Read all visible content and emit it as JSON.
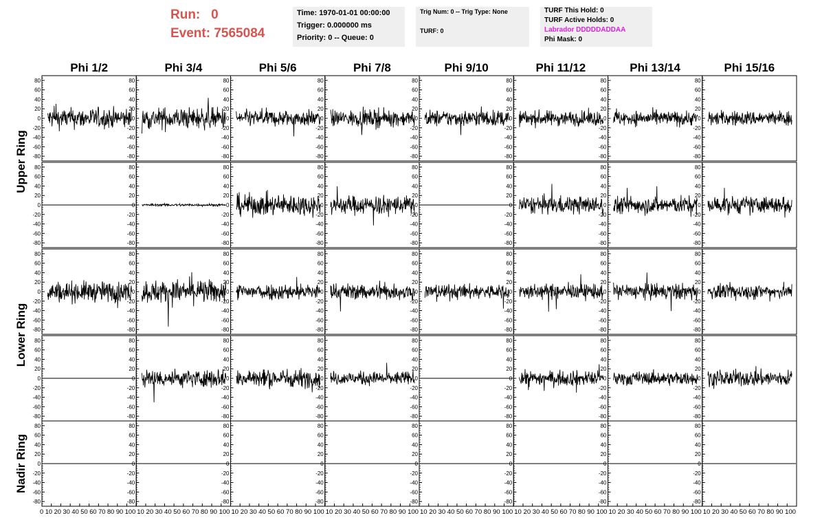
{
  "header": {
    "run_label": "Run:",
    "run_value": "0",
    "event_label": "Event:",
    "event_value": "7565084",
    "run_color": "#d9534f"
  },
  "info_panels": {
    "time_line": "Time: 1970-01-01 00:00:00",
    "trigger_line": "Trigger: 0.000000 ms",
    "priority_line": "Priority: 0 -- Queue: 0",
    "trig_line": "Trig Num: 0 -- Trig Type: None",
    "turf_line": "TURF: 0",
    "turf_hold_line": "TURF This Hold: 0",
    "turf_active_line": "TURF Active Holds: 0",
    "labrador_line": "Labrador DDDDDADDAA",
    "labrador_color": "#e020e0",
    "phimask_line": "Phi Mask: 0"
  },
  "chart_data": {
    "type": "line",
    "columns": [
      "Phi 1/2",
      "Phi 3/4",
      "Phi 5/6",
      "Phi 7/8",
      "Phi 9/10",
      "Phi 11/12",
      "Phi 13/14",
      "Phi 15/16"
    ],
    "ring_labels": [
      {
        "text": "Upper Ring",
        "rows": [
          0,
          1
        ]
      },
      {
        "text": "Lower Ring",
        "rows": [
          2,
          3
        ]
      },
      {
        "text": "Nadir Ring",
        "rows": [
          4
        ]
      }
    ],
    "ylim": [
      -90,
      90
    ],
    "yticks": [
      -80,
      -60,
      -40,
      -20,
      0,
      20,
      40,
      60,
      80
    ],
    "xlim": [
      0,
      100
    ],
    "xtick_first": "0 10 20 30 40 50 60 70 80 90 100",
    "xtick_other": "10 20 30 40 50 60 70 80 90 100",
    "grid": false,
    "line_color": "#000000",
    "panels": [
      [
        {
          "amp": 15,
          "flat": false
        },
        {
          "amp": 16,
          "flat": false
        },
        {
          "amp": 12,
          "flat": false
        },
        {
          "amp": 12,
          "flat": false
        },
        {
          "amp": 12,
          "flat": false
        },
        {
          "amp": 11,
          "flat": false
        },
        {
          "amp": 11,
          "flat": false
        },
        {
          "amp": 11,
          "flat": false
        }
      ],
      [
        {
          "amp": 0,
          "flat": true
        },
        {
          "amp": 2,
          "flat": false
        },
        {
          "amp": 16,
          "flat": false
        },
        {
          "amp": 14,
          "flat": false
        },
        {
          "amp": 0,
          "flat": true
        },
        {
          "amp": 13,
          "flat": false
        },
        {
          "amp": 13,
          "flat": false
        },
        {
          "amp": 13,
          "flat": false
        }
      ],
      [
        {
          "amp": 15,
          "flat": false
        },
        {
          "amp": 17,
          "flat": false
        },
        {
          "amp": 12,
          "flat": false
        },
        {
          "amp": 12,
          "flat": false
        },
        {
          "amp": 11,
          "flat": false
        },
        {
          "amp": 11,
          "flat": false
        },
        {
          "amp": 12,
          "flat": false
        },
        {
          "amp": 11,
          "flat": false
        }
      ],
      [
        {
          "amp": 0,
          "flat": true
        },
        {
          "amp": 13,
          "flat": false
        },
        {
          "amp": 14,
          "flat": false
        },
        {
          "amp": 10,
          "flat": false
        },
        {
          "amp": 0,
          "flat": true
        },
        {
          "amp": 11,
          "flat": false
        },
        {
          "amp": 10,
          "flat": false
        },
        {
          "amp": 12,
          "flat": false
        }
      ],
      [
        {
          "amp": 0,
          "flat": true
        },
        {
          "amp": 0,
          "flat": true
        },
        {
          "amp": 0,
          "flat": true
        },
        {
          "amp": 0,
          "flat": true
        },
        {
          "amp": 0,
          "flat": true
        },
        {
          "amp": 0,
          "flat": true
        },
        {
          "amp": 0,
          "flat": true
        },
        {
          "amp": 0,
          "flat": true
        }
      ]
    ]
  }
}
